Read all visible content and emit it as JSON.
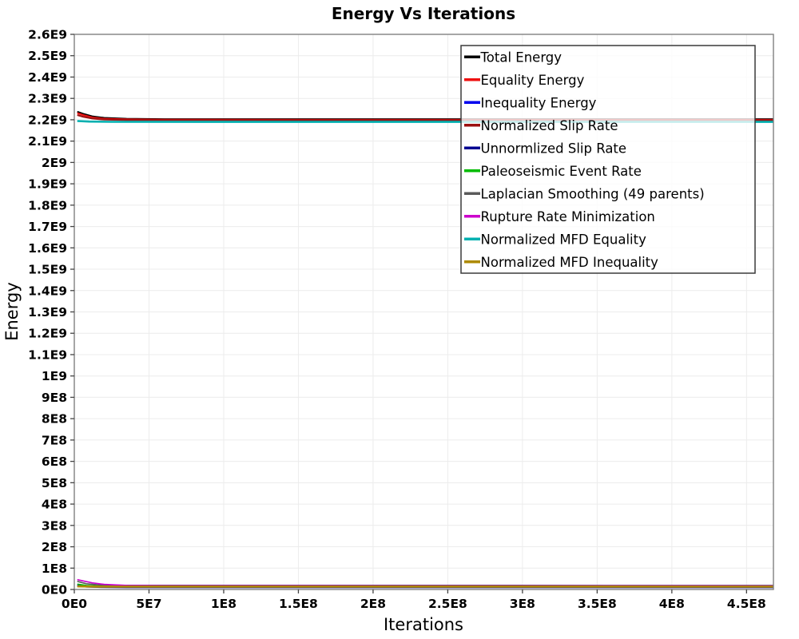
{
  "chart_data": {
    "type": "line",
    "title": "Energy Vs Iterations",
    "xlabel": "Iterations",
    "ylabel": "Energy",
    "xlim": [
      0,
      468000000.0
    ],
    "ylim": [
      0,
      2600000000.0
    ],
    "grid": true,
    "background_color": "#ffffff",
    "gridline_color": "#ececec",
    "plot_border_color": "#808080",
    "legend": {
      "position": "upper-right-inside",
      "background": "rgba(255,255,255,0.78)",
      "border_color": "#3a3a3a"
    },
    "x_ticks": {
      "values": [
        0,
        50000000.0,
        100000000.0,
        150000000.0,
        200000000.0,
        250000000.0,
        300000000.0,
        350000000.0,
        400000000.0,
        450000000.0
      ],
      "labels": [
        "0E0",
        "5E7",
        "1E8",
        "1.5E8",
        "2E8",
        "2.5E8",
        "3E8",
        "3.5E8",
        "4E8",
        "4.5E8"
      ]
    },
    "y_ticks": {
      "values": [
        0,
        100000000.0,
        200000000.0,
        300000000.0,
        400000000.0,
        500000000.0,
        600000000.0,
        700000000.0,
        800000000.0,
        900000000.0,
        1000000000.0,
        1100000000.0,
        1200000000.0,
        1300000000.0,
        1400000000.0,
        1500000000.0,
        1600000000.0,
        1700000000.0,
        1800000000.0,
        1900000000.0,
        2000000000.0,
        2100000000.0,
        2200000000.0,
        2300000000.0,
        2400000000.0,
        2500000000.0,
        2600000000.0
      ],
      "labels": [
        "0E0",
        "1E8",
        "2E8",
        "3E8",
        "4E8",
        "5E8",
        "6E8",
        "7E8",
        "8E8",
        "9E8",
        "1E9",
        "1.1E9",
        "1.2E9",
        "1.3E9",
        "1.4E9",
        "1.5E9",
        "1.6E9",
        "1.7E9",
        "1.8E9",
        "1.9E9",
        "2E9",
        "2.1E9",
        "2.2E9",
        "2.3E9",
        "2.4E9",
        "2.5E9",
        "2.6E9"
      ]
    },
    "series": [
      {
        "name": "Total Energy",
        "color": "#000000",
        "width": 2,
        "points": [
          [
            2000000.0,
            2238000000.0
          ],
          [
            6000000.0,
            2228000000.0
          ],
          [
            12000000.0,
            2216000000.0
          ],
          [
            20000000.0,
            2209000000.0
          ],
          [
            35000000.0,
            2205000000.0
          ],
          [
            60000000.0,
            2203000000.0
          ],
          [
            468000000.0,
            2203000000.0
          ]
        ]
      },
      {
        "name": "Equality Energy",
        "color": "#ee1111",
        "width": 2,
        "points": [
          [
            2000000.0,
            2231000000.0
          ],
          [
            6000000.0,
            2222000000.0
          ],
          [
            12000000.0,
            2211000000.0
          ],
          [
            20000000.0,
            2205000000.0
          ],
          [
            35000000.0,
            2202000000.0
          ],
          [
            60000000.0,
            2200500000.0
          ],
          [
            468000000.0,
            2200000000.0
          ]
        ]
      },
      {
        "name": "Inequality Energy",
        "color": "#0000ee",
        "width": 1.6,
        "points": [
          [
            2000000.0,
            21000000.0
          ],
          [
            8000000.0,
            16000000.0
          ],
          [
            18000000.0,
            13000000.0
          ],
          [
            35000000.0,
            11500000.0
          ],
          [
            468000000.0,
            11000000.0
          ]
        ]
      },
      {
        "name": "Normalized Slip Rate",
        "color": "#9b1010",
        "width": 2.2,
        "points": [
          [
            2000000.0,
            2222000000.0
          ],
          [
            6000000.0,
            2214000000.0
          ],
          [
            12000000.0,
            2206000000.0
          ],
          [
            20000000.0,
            2201000000.0
          ],
          [
            35000000.0,
            2198500000.0
          ],
          [
            468000000.0,
            2198000000.0
          ]
        ]
      },
      {
        "name": "Unnormlized Slip Rate",
        "color": "#000090",
        "width": 1.6,
        "points": [
          [
            2000000.0,
            16000000.0
          ],
          [
            8000000.0,
            12000000.0
          ],
          [
            18000000.0,
            10000000.0
          ],
          [
            35000000.0,
            9000000.0
          ],
          [
            468000000.0,
            9000000.0
          ]
        ]
      },
      {
        "name": "Paleoseismic Event Rate",
        "color": "#00bb00",
        "width": 1.6,
        "points": [
          [
            2000000.0,
            25000000.0
          ],
          [
            8000000.0,
            19000000.0
          ],
          [
            18000000.0,
            16000000.0
          ],
          [
            35000000.0,
            15000000.0
          ],
          [
            468000000.0,
            15000000.0
          ]
        ]
      },
      {
        "name": "Laplacian Smoothing (49 parents)",
        "color": "#5a5a5a",
        "width": 1.6,
        "points": [
          [
            2000000.0,
            38000000.0
          ],
          [
            8000000.0,
            27000000.0
          ],
          [
            18000000.0,
            21000000.0
          ],
          [
            35000000.0,
            19500000.0
          ],
          [
            468000000.0,
            19000000.0
          ]
        ]
      },
      {
        "name": "Rupture Rate Minimization",
        "color": "#cc00cc",
        "width": 1.6,
        "points": [
          [
            2000000.0,
            46000000.0
          ],
          [
            6000000.0,
            40000000.0
          ],
          [
            12000000.0,
            31000000.0
          ],
          [
            20000000.0,
            24000000.0
          ],
          [
            35000000.0,
            19000000.0
          ],
          [
            60000000.0,
            17500000.0
          ],
          [
            468000000.0,
            17000000.0
          ]
        ]
      },
      {
        "name": "Normalized MFD Equality",
        "color": "#00b0b0",
        "width": 2.6,
        "points": [
          [
            2000000.0,
            2194000000.0
          ],
          [
            10000000.0,
            2191500000.0
          ],
          [
            25000000.0,
            2190500000.0
          ],
          [
            468000000.0,
            2190000000.0
          ]
        ]
      },
      {
        "name": "Normalized MFD Inequality",
        "color": "#ad8a00",
        "width": 2.6,
        "points": [
          [
            2000000.0,
            14500000.0
          ],
          [
            15000000.0,
            13500000.0
          ],
          [
            468000000.0,
            13000000.0
          ]
        ]
      }
    ]
  }
}
